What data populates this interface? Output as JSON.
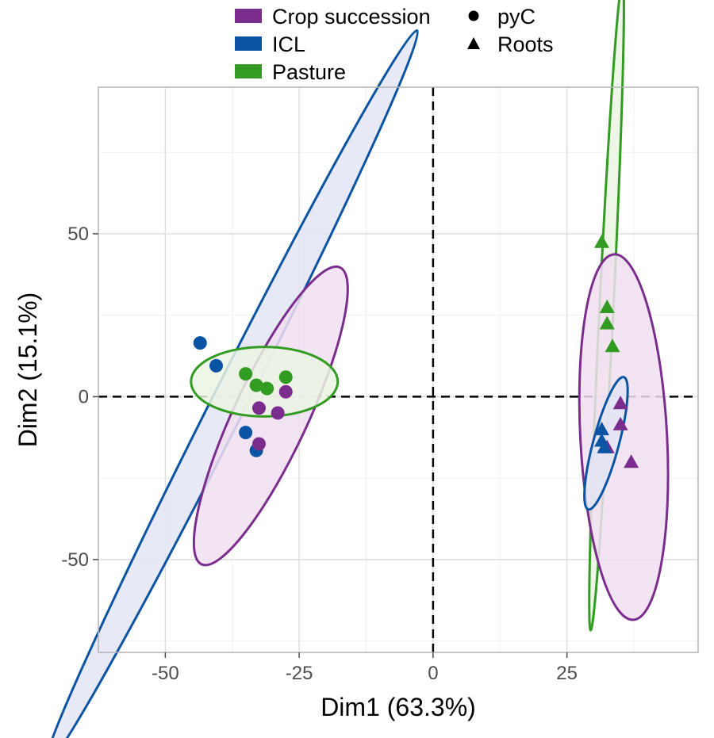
{
  "chart_data": {
    "type": "scatter",
    "xlabel": "Dim1 (63.3%)",
    "ylabel": "Dim2 (15.1%)",
    "xlim": [
      -62.5,
      49.5
    ],
    "ylim": [
      -78.5,
      95
    ],
    "x_ticks": [
      -50,
      -25,
      0,
      25
    ],
    "y_ticks": [
      50,
      0,
      -50
    ],
    "x_tick_labels": [
      "-50",
      "-25",
      "0",
      "25"
    ],
    "y_tick_labels": [
      "50",
      "0",
      "-50"
    ],
    "grid": true,
    "reference_lines": {
      "x": 0,
      "y": 0,
      "style": "dashed"
    },
    "legend": {
      "placement": "top",
      "groups": [
        {
          "label": "Crop succession",
          "color": "#7b2d8e"
        },
        {
          "label": "ICL",
          "color": "#0b54a4"
        },
        {
          "label": "Pasture",
          "color": "#329b22"
        }
      ],
      "shapes": [
        {
          "label": "pyC",
          "shape": "circle"
        },
        {
          "label": "Roots",
          "shape": "triangle"
        }
      ]
    },
    "series": [
      {
        "group": "ICL",
        "shape": "circle",
        "color": "#0b54a4",
        "points": [
          [
            -43.5,
            16.5
          ],
          [
            -40.5,
            9.5
          ],
          [
            -35,
            -11
          ],
          [
            -33,
            -16.5
          ]
        ]
      },
      {
        "group": "Pasture",
        "shape": "circle",
        "color": "#329b22",
        "points": [
          [
            -35,
            7
          ],
          [
            -33,
            3.5
          ],
          [
            -31,
            2.5
          ],
          [
            -27.5,
            6
          ]
        ]
      },
      {
        "group": "Crop succession",
        "shape": "circle",
        "color": "#7b2d8e",
        "points": [
          [
            -27.5,
            1.5
          ],
          [
            -29,
            -5
          ],
          [
            -32.5,
            -3.5
          ],
          [
            -32.5,
            -14.5
          ]
        ]
      },
      {
        "group": "Pasture",
        "shape": "triangle",
        "color": "#329b22",
        "points": [
          [
            31.5,
            47.5
          ],
          [
            32.5,
            27.5
          ],
          [
            32.5,
            22.5
          ],
          [
            33.5,
            15.5
          ]
        ]
      },
      {
        "group": "Crop succession",
        "shape": "triangle",
        "color": "#7b2d8e",
        "points": [
          [
            35,
            -2
          ],
          [
            35,
            -8.5
          ],
          [
            37,
            -20
          ],
          [
            32.5,
            -15.5
          ]
        ]
      },
      {
        "group": "ICL",
        "shape": "triangle",
        "color": "#0b54a4",
        "points": [
          [
            31.5,
            -10
          ],
          [
            31.5,
            -13.5
          ],
          [
            32,
            -15.5
          ]
        ]
      }
    ],
    "ellipses": [
      {
        "group": "ICL",
        "color": "#0b54a4",
        "fill": "#e3e5f4",
        "cx": -37.7,
        "cy": -0.5,
        "rx": 77,
        "ry": 3.2,
        "angle_deg": -63.2
      },
      {
        "group": "Crop succession",
        "color": "#7b2d8e",
        "fill": "#f1dff1",
        "cx": -30.3,
        "cy": -5.9,
        "rx": 30.6,
        "ry": 6.9,
        "angle_deg": -65
      },
      {
        "group": "Pasture",
        "color": "#329b22",
        "fill": "#ebf4e4",
        "cx": -31.5,
        "cy": 4.6,
        "rx": 13.7,
        "ry": 6.5,
        "angle_deg": 0
      },
      {
        "group": "Pasture",
        "color": "#329b22",
        "fill": "#ebf4e4",
        "cx": 32.4,
        "cy": 27.9,
        "rx": 60.7,
        "ry": 1.3,
        "angle_deg": -87.2
      },
      {
        "group": "Crop succession",
        "color": "#7b2d8e",
        "fill": "#f1dff1",
        "cx": 35.6,
        "cy": -12.4,
        "rx": 34.2,
        "ry": 8.1,
        "angle_deg": -93
      },
      {
        "group": "ICL",
        "color": "#0b54a4",
        "fill": "#e3e5f4",
        "cx": 32.3,
        "cy": -14.3,
        "rx": 12.8,
        "ry": 2.4,
        "angle_deg": -75
      }
    ]
  }
}
